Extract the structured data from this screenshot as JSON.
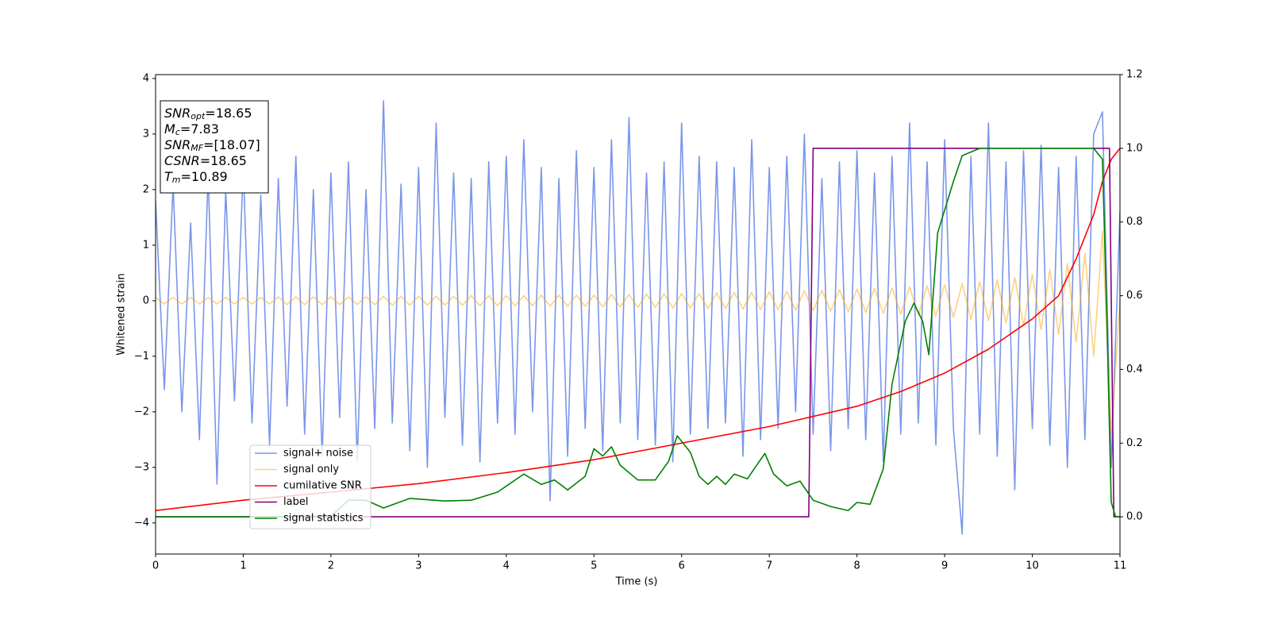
{
  "chart_data": {
    "type": "line",
    "xlabel": "Time (s)",
    "ylabel": "Whitened strain",
    "xlim": [
      0,
      11
    ],
    "ylim": [
      -4.56,
      4.07
    ],
    "y2lim": [
      -0.101,
      1.2
    ],
    "xticks": [
      0,
      1,
      2,
      3,
      4,
      5,
      6,
      7,
      8,
      9,
      10,
      11
    ],
    "yticks": [
      {
        "value": -4,
        "label": "−4"
      },
      {
        "value": -3,
        "label": "−3"
      },
      {
        "value": -2,
        "label": "−2"
      },
      {
        "value": -1,
        "label": "−1"
      },
      0,
      1,
      2,
      3,
      4
    ],
    "y2ticks": [
      {
        "value": 0,
        "label": "0.0"
      },
      {
        "value": 0.2,
        "label": "0.2"
      },
      {
        "value": 0.4,
        "label": "0.4"
      },
      {
        "value": 0.6,
        "label": "0.6"
      },
      {
        "value": 0.8,
        "label": "0.8"
      },
      {
        "value": 1.0,
        "label": "1.0"
      },
      {
        "value": 1.2,
        "label": "1.2"
      }
    ],
    "legend": "lower left",
    "annotations": [
      {
        "symbol": "SNR",
        "sub": "opt",
        "text": "=18.65"
      },
      {
        "symbol": "M",
        "sub": "c",
        "text": "=7.83"
      },
      {
        "symbol": "SNR",
        "sub": "MF",
        "text": "=[18.07]"
      },
      {
        "symbol": "CSNR",
        "sub": null,
        "text": "=18.65"
      },
      {
        "symbol": "T",
        "sub": "m",
        "text": "=10.89"
      }
    ],
    "x": [
      0,
      0.1,
      0.2,
      0.3,
      0.4,
      0.5,
      0.6,
      0.7,
      0.8,
      0.9,
      1,
      1.1,
      1.2,
      1.3,
      1.4,
      1.5,
      1.6,
      1.7,
      1.8,
      1.9,
      2,
      2.1,
      2.2,
      2.3,
      2.4,
      2.5,
      2.6,
      2.7,
      2.8,
      2.9,
      3,
      3.1,
      3.2,
      3.3,
      3.4,
      3.5,
      3.6,
      3.7,
      3.8,
      3.9,
      4,
      4.1,
      4.2,
      4.3,
      4.4,
      4.5,
      4.6,
      4.7,
      4.8,
      4.9,
      5,
      5.1,
      5.2,
      5.3,
      5.4,
      5.5,
      5.6,
      5.7,
      5.8,
      5.9,
      6,
      6.1,
      6.2,
      6.3,
      6.4,
      6.5,
      6.6,
      6.7,
      6.8,
      6.9,
      7,
      7.1,
      7.2,
      7.3,
      7.4,
      7.5,
      7.6,
      7.7,
      7.8,
      7.9,
      8,
      8.1,
      8.2,
      8.3,
      8.4,
      8.5,
      8.6,
      8.7,
      8.8,
      8.9,
      9,
      9.1,
      9.2,
      9.3,
      9.4,
      9.5,
      9.6,
      9.7,
      9.8,
      9.9,
      10,
      10.1,
      10.2,
      10.3,
      10.4,
      10.5,
      10.6,
      10.7,
      10.8,
      10.9,
      11
    ],
    "series": [
      {
        "name": "signal+ noise",
        "color": "royalblue",
        "alpha": 0.7,
        "values": [
          1.8,
          -1.6,
          2.1,
          -2.0,
          1.4,
          -2.5,
          2.3,
          -3.3,
          2.0,
          -1.8,
          2.4,
          -2.2,
          1.9,
          -2.6,
          2.2,
          -1.9,
          2.6,
          -2.4,
          2.0,
          -2.8,
          2.3,
          -2.1,
          2.5,
          -2.9,
          2.0,
          -2.3,
          3.6,
          -2.2,
          2.1,
          -2.7,
          2.4,
          -3.0,
          3.2,
          -2.1,
          2.3,
          -2.6,
          2.2,
          -2.9,
          2.5,
          -2.2,
          2.6,
          -2.4,
          2.9,
          -2.0,
          2.4,
          -3.6,
          2.2,
          -2.8,
          2.7,
          -2.3,
          2.4,
          -2.7,
          2.9,
          -2.2,
          3.3,
          -2.5,
          2.3,
          -2.6,
          2.5,
          -2.9,
          3.2,
          -2.4,
          2.6,
          -2.3,
          2.5,
          -2.2,
          2.4,
          -2.8,
          2.9,
          -2.5,
          2.4,
          -2.3,
          2.6,
          -2.0,
          3.0,
          -2.4,
          2.2,
          -2.7,
          2.5,
          -2.3,
          2.7,
          -2.5,
          2.3,
          -2.9,
          2.6,
          -2.4,
          3.2,
          -2.2,
          2.5,
          -2.6,
          2.9,
          -2.3,
          -4.2,
          2.6,
          -2.4,
          3.2,
          -2.8,
          2.5,
          -3.4,
          2.7,
          -2.3,
          2.8,
          -2.6,
          2.4,
          -3.0,
          2.6,
          -2.5,
          3.0,
          3.4,
          -3.0,
          1.6
        ]
      },
      {
        "name": "signal only",
        "color": "orange",
        "alpha": 0.5,
        "values": [
          0.06,
          -0.06,
          0.06,
          -0.06,
          0.06,
          -0.06,
          0.06,
          -0.06,
          0.06,
          -0.06,
          0.06,
          -0.06,
          0.06,
          -0.06,
          0.07,
          -0.07,
          0.07,
          -0.07,
          0.07,
          -0.07,
          0.07,
          -0.07,
          0.07,
          -0.07,
          0.07,
          -0.07,
          0.08,
          -0.08,
          0.08,
          -0.08,
          0.08,
          -0.08,
          0.08,
          -0.08,
          0.08,
          -0.08,
          0.09,
          -0.09,
          0.09,
          -0.09,
          0.09,
          -0.09,
          0.09,
          -0.09,
          0.1,
          -0.1,
          0.1,
          -0.1,
          0.1,
          -0.1,
          0.1,
          -0.11,
          0.11,
          -0.11,
          0.11,
          -0.12,
          0.12,
          -0.12,
          0.12,
          -0.13,
          0.13,
          -0.13,
          0.13,
          -0.14,
          0.14,
          -0.14,
          0.15,
          -0.15,
          0.15,
          -0.16,
          0.16,
          -0.16,
          0.17,
          -0.17,
          0.18,
          -0.18,
          0.19,
          -0.19,
          0.2,
          -0.2,
          0.21,
          -0.21,
          0.22,
          -0.23,
          0.23,
          -0.24,
          0.25,
          -0.26,
          0.27,
          -0.28,
          0.29,
          -0.3,
          0.31,
          -0.33,
          0.34,
          -0.36,
          0.38,
          -0.4,
          0.42,
          -0.45,
          0.48,
          -0.52,
          0.56,
          -0.61,
          0.67,
          -0.75,
          0.85,
          -1.0,
          1.25,
          -2.4,
          0
        ]
      },
      {
        "name": "cumilative SNR",
        "color": "red",
        "alpha": 1,
        "axis": "y2",
        "x": [
          0,
          1,
          2,
          3,
          4,
          5,
          6,
          7,
          8,
          8.5,
          9,
          9.5,
          10,
          10.3,
          10.5,
          10.7,
          10.8,
          10.9,
          11
        ],
        "values": [
          0.017,
          0.045,
          0.067,
          0.09,
          0.12,
          0.155,
          0.2,
          0.245,
          0.3,
          0.34,
          0.39,
          0.455,
          0.537,
          0.6,
          0.7,
          0.82,
          0.91,
          0.97,
          1.0
        ]
      },
      {
        "name": "label",
        "color": "purple",
        "alpha": 1,
        "axis": "y2",
        "x": [
          0,
          7.45,
          7.5,
          10.88,
          10.93,
          11
        ],
        "values": [
          0,
          0,
          1,
          1,
          0,
          0
        ]
      },
      {
        "name": "signal statistics",
        "color": "green",
        "alpha": 1,
        "axis": "y2",
        "x": [
          0,
          1,
          2,
          2.2,
          2.4,
          2.6,
          2.9,
          3.3,
          3.6,
          3.9,
          4.2,
          4.4,
          4.55,
          4.7,
          4.9,
          5.0,
          5.1,
          5.2,
          5.3,
          5.5,
          5.7,
          5.85,
          5.95,
          6.1,
          6.2,
          6.3,
          6.4,
          6.5,
          6.6,
          6.75,
          6.85,
          6.95,
          7.05,
          7.2,
          7.35,
          7.5,
          7.7,
          7.9,
          8.0,
          8.15,
          8.3,
          8.4,
          8.55,
          8.65,
          8.75,
          8.82,
          8.92,
          9.1,
          9.2,
          9.4,
          10.7,
          10.8,
          10.85,
          10.9,
          10.95,
          11
        ],
        "values": [
          0,
          0,
          0.002,
          0.045,
          0.045,
          0.024,
          0.05,
          0.043,
          0.045,
          0.067,
          0.116,
          0.088,
          0.1,
          0.073,
          0.11,
          0.185,
          0.165,
          0.19,
          0.14,
          0.1,
          0.1,
          0.15,
          0.22,
          0.175,
          0.11,
          0.088,
          0.11,
          0.088,
          0.116,
          0.103,
          0.138,
          0.172,
          0.116,
          0.084,
          0.097,
          0.045,
          0.028,
          0.017,
          0.039,
          0.034,
          0.13,
          0.36,
          0.53,
          0.58,
          0.53,
          0.44,
          0.77,
          0.91,
          0.98,
          1.0,
          1.0,
          0.97,
          0.54,
          0.04,
          0,
          0
        ]
      }
    ]
  }
}
